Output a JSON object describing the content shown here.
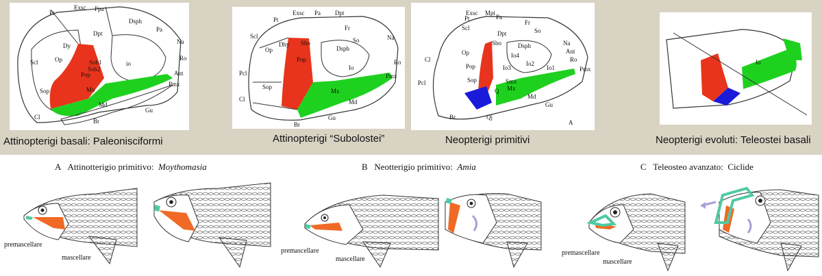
{
  "colors": {
    "red": "#e8341c",
    "green": "#1fd11f",
    "blue": "#1a1adb",
    "teal": "#4fc9a4",
    "arrow": "#a99fd9",
    "band": "#d9d3c4"
  },
  "top_captions": [
    "Attinopterigi basali: Paleonisciformi",
    "Attinopterigi “Subolostei”",
    "Neopterigi primitivi",
    "Neopterigi evoluti: Teleostei basali"
  ],
  "panel1_labels": [
    "Pt",
    "Exsc",
    "Ppa",
    "Dpt",
    "Dsph",
    "Pa",
    "Na",
    "Ro",
    "Scl",
    "Op",
    "Dy",
    "Sob1",
    "Sob2",
    "io",
    "Ant",
    "Pmx",
    "Pop",
    "Sop",
    "Mx",
    "Md",
    "Gu",
    "Cl",
    "Br"
  ],
  "panel2_labels": [
    "Pt",
    "Exsc",
    "Pa",
    "Dpt",
    "Scl",
    "Dhy",
    "Sbo",
    "Fr",
    "So",
    "Dsph",
    "Na",
    "Op",
    "Pop",
    "Io",
    "Ro",
    "Pcl",
    "Sop",
    "Mx",
    "Pmx",
    "Md",
    "Cl",
    "Br",
    "Gu"
  ],
  "panel3_labels": [
    "Exsc",
    "Pt",
    "Mpt",
    "Pa",
    "Scl",
    "Dpt",
    "Fr",
    "So",
    "Sbo",
    "Dsph",
    "Io4",
    "Na",
    "Ant",
    "Ro",
    "Cl",
    "Op",
    "Pop",
    "Io3",
    "Io2",
    "Io1",
    "Pmx",
    "Smx",
    "Pcl",
    "Sop",
    "Q",
    "Mx",
    "Md",
    "Gu",
    "Br",
    "Qj",
    "A"
  ],
  "panel4_labels": [
    "Io"
  ],
  "bottom_titles": [
    {
      "prefix": "A",
      "text": "Attinotterigio primitivo:",
      "taxon": "Moythomasia"
    },
    {
      "prefix": "B",
      "text": "Neotterigio primitivo:",
      "taxon": "Amia"
    },
    {
      "prefix": "C",
      "text": "Teleosteo avanzato:",
      "taxon": "Ciclide"
    }
  ],
  "bottom_labels": {
    "a_premax": "premascellare",
    "a_max": "mascellare",
    "b_premax": "premascellare",
    "b_max": "mascellare",
    "c_premax": "premascellare",
    "c_max": "mascellare"
  }
}
